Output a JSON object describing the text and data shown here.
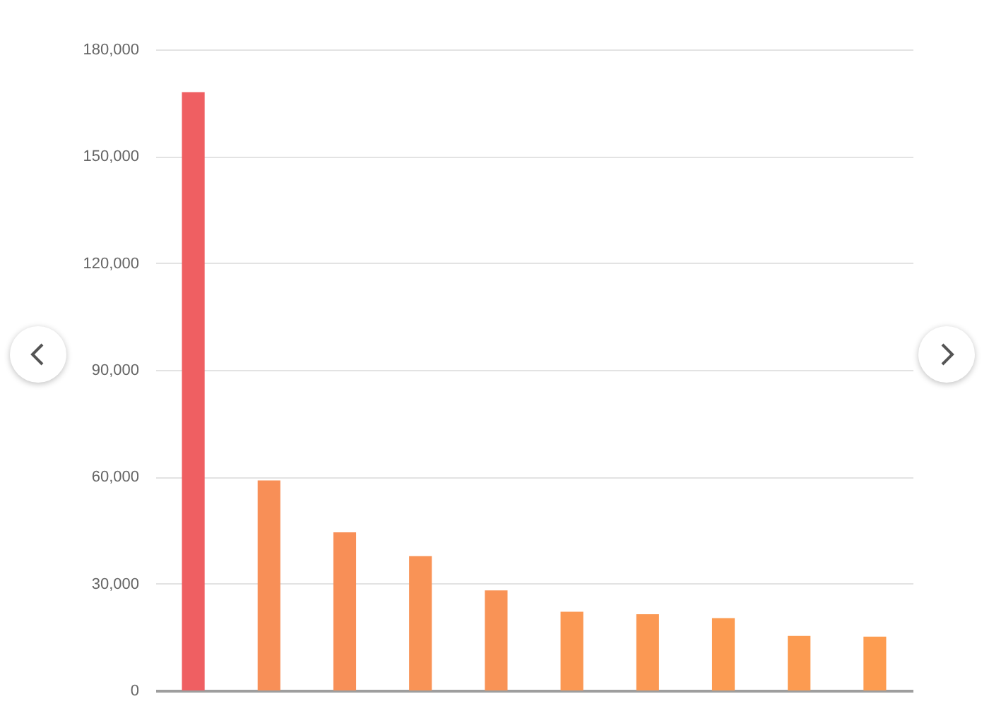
{
  "chart_data": {
    "type": "bar",
    "categories": [
      null,
      null,
      null,
      null,
      null,
      null,
      null,
      null,
      null,
      null
    ],
    "values": [
      168000,
      59000,
      44400,
      37700,
      28100,
      22100,
      21400,
      20300,
      15300,
      15100
    ],
    "colors": [
      "#ef5f62",
      "#f88f57",
      "#f88f57",
      "#f99356",
      "#f99356",
      "#fb9853",
      "#fb9853",
      "#fc9b51",
      "#fc9b51",
      "#fd9c50"
    ],
    "ylim": [
      0,
      180000
    ],
    "yticks": [
      0,
      {
        "value": 30000,
        "label": "30,000"
      },
      {
        "value": 60000,
        "label": "60,000"
      },
      {
        "value": 90000,
        "label": "90,000"
      },
      {
        "value": 120000,
        "label": "120,000"
      },
      {
        "value": 150000,
        "label": "150,000"
      },
      {
        "value": 180000,
        "label": "180,000"
      }
    ],
    "grid": "y",
    "tick_labels": "y"
  }
}
